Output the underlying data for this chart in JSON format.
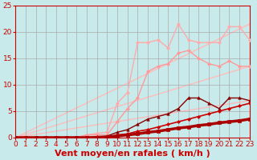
{
  "xlabel": "Vent moyen/en rafales ( km/h )",
  "xlim": [
    0,
    23
  ],
  "ylim": [
    0,
    25
  ],
  "xticks": [
    0,
    1,
    2,
    3,
    4,
    5,
    6,
    7,
    8,
    9,
    10,
    11,
    12,
    13,
    14,
    15,
    16,
    17,
    18,
    19,
    20,
    21,
    22,
    23
  ],
  "yticks": [
    0,
    5,
    10,
    15,
    20,
    25
  ],
  "bg_color": "#c8eaea",
  "grid_color": "#aaaaaa",
  "trend1": {
    "x": [
      0,
      23
    ],
    "y": [
      0,
      7.0
    ],
    "color": "#ffbbbb",
    "lw": 1.0
  },
  "trend2": {
    "x": [
      0,
      23
    ],
    "y": [
      0,
      13.5
    ],
    "color": "#ffbbbb",
    "lw": 1.0
  },
  "trend3": {
    "x": [
      0,
      23
    ],
    "y": [
      0,
      21.5
    ],
    "color": "#ffbbbb",
    "lw": 1.0
  },
  "line_thick": {
    "x": [
      0,
      1,
      2,
      3,
      4,
      5,
      6,
      7,
      8,
      9,
      10,
      11,
      12,
      13,
      14,
      15,
      16,
      17,
      18,
      19,
      20,
      21,
      22,
      23
    ],
    "y": [
      0,
      0,
      0,
      0,
      0,
      0,
      0,
      0,
      0,
      0,
      0.3,
      0.5,
      0.7,
      1.0,
      1.2,
      1.5,
      1.8,
      2.0,
      2.3,
      2.5,
      2.8,
      3.0,
      3.2,
      3.5
    ],
    "color": "#aa0000",
    "lw": 2.5,
    "marker": "s",
    "ms": 2.5
  },
  "line_med": {
    "x": [
      0,
      1,
      2,
      3,
      4,
      5,
      6,
      7,
      8,
      9,
      10,
      11,
      12,
      13,
      14,
      15,
      16,
      17,
      18,
      19,
      20,
      21,
      22,
      23
    ],
    "y": [
      0,
      0,
      0,
      0,
      0,
      0,
      0,
      0,
      0.1,
      0.2,
      0.5,
      0.7,
      1.2,
      1.5,
      2.0,
      2.5,
      3.0,
      3.5,
      4.0,
      4.5,
      5.0,
      5.5,
      6.0,
      6.5
    ],
    "color": "#cc0000",
    "lw": 1.2,
    "marker": "D",
    "ms": 2.0
  },
  "line_dark_markers": {
    "x": [
      0,
      1,
      2,
      3,
      4,
      5,
      6,
      7,
      8,
      9,
      10,
      11,
      12,
      13,
      14,
      15,
      16,
      17,
      18,
      19,
      20,
      21,
      22,
      23
    ],
    "y": [
      0,
      0,
      0,
      0,
      0,
      0,
      0,
      0,
      0.2,
      0.3,
      1.0,
      1.5,
      2.5,
      3.5,
      4.0,
      4.5,
      5.5,
      7.5,
      7.5,
      6.5,
      5.5,
      7.5,
      7.5,
      7.0
    ],
    "color": "#880000",
    "lw": 1.0,
    "marker": "^",
    "ms": 2.5
  },
  "line_pink_low": {
    "x": [
      0,
      1,
      2,
      3,
      4,
      5,
      6,
      7,
      8,
      9,
      10,
      11,
      12,
      13,
      14,
      15,
      16,
      17,
      18,
      19,
      20,
      21,
      22,
      23
    ],
    "y": [
      0,
      0,
      0,
      0,
      0,
      0,
      0,
      0.5,
      0.5,
      0.5,
      3.0,
      5.5,
      7.5,
      12.5,
      13.5,
      14.0,
      16.0,
      16.5,
      15.0,
      14.0,
      13.5,
      14.5,
      13.5,
      13.5
    ],
    "color": "#ff9999",
    "lw": 1.0,
    "marker": "D",
    "ms": 2.0
  },
  "line_pink_high": {
    "x": [
      0,
      1,
      2,
      3,
      4,
      5,
      6,
      7,
      8,
      9,
      10,
      11,
      12,
      13,
      14,
      15,
      16,
      17,
      18,
      19,
      20,
      21,
      22,
      23
    ],
    "y": [
      0,
      0,
      0,
      0,
      0,
      0,
      0,
      0.5,
      0.8,
      1.0,
      6.5,
      8.5,
      18.0,
      18.0,
      18.5,
      17.0,
      21.5,
      18.5,
      18.0,
      18.0,
      18.0,
      21.0,
      21.0,
      18.5
    ],
    "color": "#ffaaaa",
    "lw": 1.0,
    "marker": "D",
    "ms": 2.0
  },
  "font_color": "#cc0000",
  "xlabel_fontsize": 8,
  "tick_fontsize": 6.5
}
